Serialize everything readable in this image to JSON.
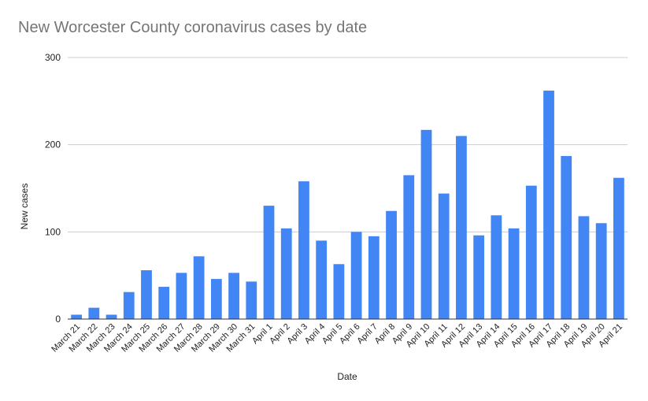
{
  "chart_data": {
    "type": "bar",
    "title": "New Worcester County coronavirus cases by date",
    "xlabel": "Date",
    "ylabel": "New cases",
    "ylim": [
      0,
      300
    ],
    "yticks": [
      "0",
      "100",
      "200",
      "300"
    ],
    "grid": true,
    "bar_color": "#4285f4",
    "categories": [
      "March 21",
      "March 22",
      "March 23",
      "March 24",
      "March 25",
      "March 26",
      "March 27",
      "March 28",
      "March 29",
      "March 30",
      "March 31",
      "April 1",
      "April 2",
      "April 3",
      "April 4",
      "April 5",
      "April 6",
      "April 7",
      "April 8",
      "April 9",
      "April 10",
      "April 11",
      "April 12",
      "April 13",
      "April 14",
      "April 15",
      "April 16",
      "April 17",
      "April 18",
      "April 19",
      "April 20",
      "April 21"
    ],
    "values": [
      5,
      13,
      5,
      31,
      56,
      37,
      53,
      72,
      46,
      53,
      43,
      130,
      104,
      158,
      90,
      63,
      100,
      95,
      124,
      165,
      217,
      144,
      210,
      96,
      119,
      104,
      153,
      262,
      187,
      118,
      110,
      162
    ]
  }
}
